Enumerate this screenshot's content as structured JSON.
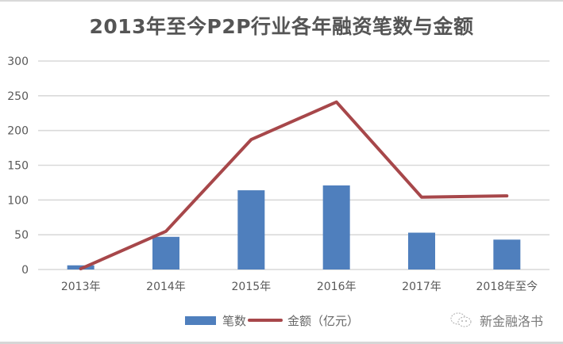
{
  "title": "2013年至今P2P行业各年融资笔数与金额",
  "legend": {
    "bar_label": "笔数",
    "line_label": "金额（亿元）"
  },
  "watermark": {
    "icon": "wechat-bubble-icon",
    "text": "新金融洛书"
  },
  "colors": {
    "bar": "#4f7fbd",
    "line": "#a7474a",
    "grid": "#d9d9d9",
    "axis_text": "#595959",
    "title": "#555555"
  },
  "chart_data": {
    "type": "bar",
    "title": "2013年至今P2P行业各年融资笔数与金额",
    "xlabel": "",
    "ylabel": "",
    "categories": [
      "2013年",
      "2014年",
      "2015年",
      "2016年",
      "2017年",
      "2018年至今"
    ],
    "series": [
      {
        "name": "笔数",
        "type": "bar",
        "values": [
          6,
          47,
          114,
          121,
          53,
          43
        ]
      },
      {
        "name": "金额（亿元）",
        "type": "line",
        "values": [
          1,
          55,
          187,
          241,
          104,
          106
        ]
      }
    ],
    "ylim": [
      0,
      300
    ],
    "yticks": [
      0,
      50,
      100,
      150,
      200,
      250,
      300
    ],
    "grid": true,
    "legend_position": "bottom"
  }
}
